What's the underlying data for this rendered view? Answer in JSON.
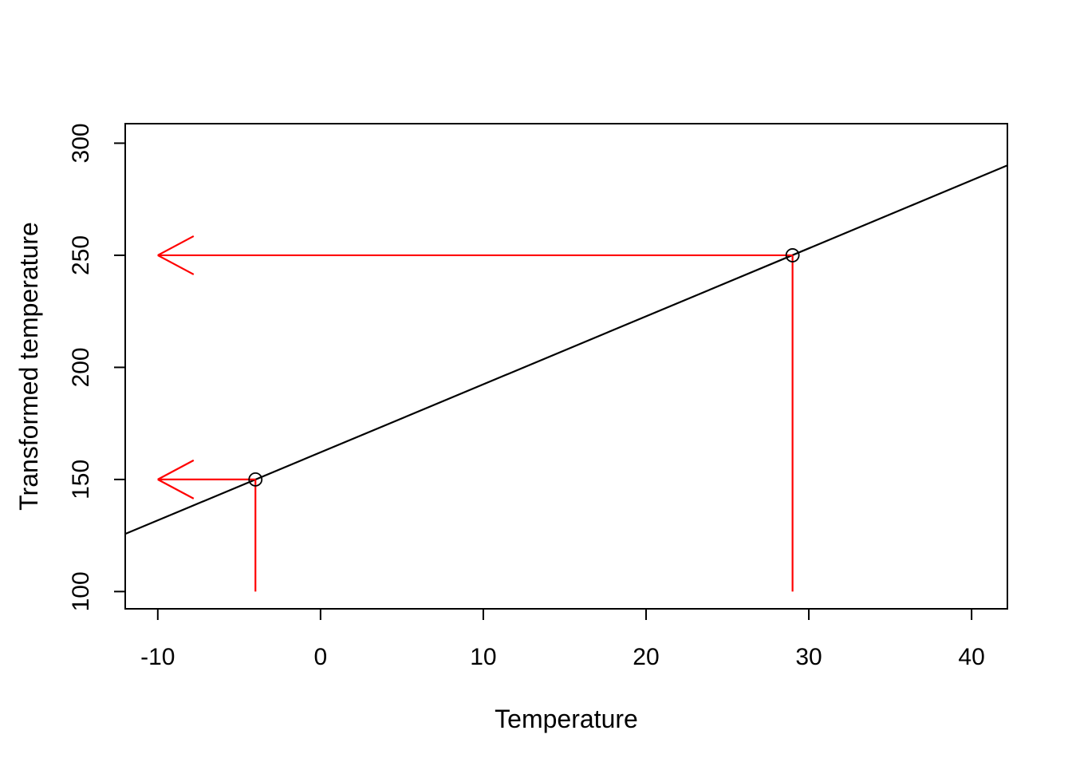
{
  "chart_data": {
    "type": "line",
    "title": "",
    "xlabel": "Temperature",
    "ylabel": "Transformed temperature",
    "x_ticks": [
      -10,
      0,
      10,
      20,
      30,
      40
    ],
    "y_ticks": [
      100,
      150,
      200,
      250,
      300
    ],
    "xlim": [
      -12.0,
      42.2
    ],
    "ylim": [
      92.3,
      308.7
    ],
    "grid": false,
    "legend": "none",
    "line": {
      "name": "transformation-line",
      "color": "#000000",
      "points": [
        [
          -12.0,
          125.7
        ],
        [
          42.2,
          290.1
        ]
      ]
    },
    "marked_points": [
      {
        "x": -4,
        "y": 150,
        "marker": "open-circle",
        "color": "#000000"
      },
      {
        "x": 29,
        "y": 250,
        "marker": "open-circle",
        "color": "#000000"
      }
    ],
    "annotations": {
      "color": "#ff0000",
      "horizontal_arrows": [
        {
          "from": [
            29,
            250
          ],
          "to": [
            -10,
            250
          ],
          "direction": "left"
        },
        {
          "from": [
            -4,
            150
          ],
          "to": [
            -10,
            150
          ],
          "direction": "left"
        }
      ],
      "vertical_lines": [
        {
          "from": [
            29,
            250
          ],
          "to": [
            29,
            100
          ]
        },
        {
          "from": [
            -4,
            150
          ],
          "to": [
            -4,
            100
          ]
        }
      ]
    },
    "axis_color": "#000000",
    "background": "#ffffff"
  }
}
